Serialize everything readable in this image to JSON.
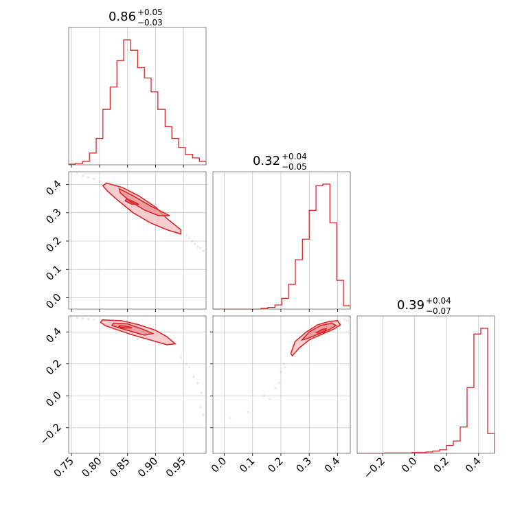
{
  "colors": {
    "accent": "#d62728",
    "fill_light": "#f4c6c8",
    "fill_mid": "#ea8e92",
    "frame": "#808080",
    "grid": "#c8c8c8"
  },
  "chart_data": {
    "type": "corner",
    "parameters": [
      {
        "title": {
          "median": "0.86",
          "plus": "+0.05",
          "minus": "−0.03"
        },
        "range": [
          0.745,
          0.99
        ]
      },
      {
        "title": {
          "median": "0.32",
          "plus": "+0.04",
          "minus": "−0.05"
        },
        "range": [
          -0.04,
          0.445
        ]
      },
      {
        "title": {
          "median": "0.39",
          "plus": "+0.04",
          "minus": "−0.07"
        },
        "range": [
          -0.36,
          0.5
        ]
      }
    ],
    "axis_ticks": [
      {
        "values": [
          0.75,
          0.8,
          0.85,
          0.9,
          0.95
        ],
        "labels": [
          "0.75",
          "0.80",
          "0.85",
          "0.90",
          "0.95"
        ]
      },
      {
        "values": [
          0.0,
          0.1,
          0.2,
          0.3,
          0.4
        ],
        "labels": [
          "0.0",
          "0.1",
          "0.2",
          "0.3",
          "0.4"
        ]
      },
      {
        "values": [
          -0.2,
          0.0,
          0.2,
          0.4
        ],
        "labels": [
          "−0.2",
          "0.0",
          "0.2",
          "0.4"
        ]
      }
    ],
    "histograms": [
      {
        "bin_edges": [
          0.745,
          0.757,
          0.77,
          0.782,
          0.794,
          0.806,
          0.819,
          0.831,
          0.843,
          0.855,
          0.868,
          0.88,
          0.892,
          0.904,
          0.917,
          0.929,
          0.941,
          0.953,
          0.966,
          0.978,
          0.99
        ],
        "counts": [
          1,
          2,
          5,
          17,
          38,
          80,
          112,
          150,
          180,
          165,
          140,
          125,
          105,
          80,
          55,
          38,
          25,
          15,
          10,
          5
        ]
      },
      {
        "bin_edges": [
          -0.04,
          -0.016,
          0.009,
          0.033,
          0.057,
          0.082,
          0.106,
          0.13,
          0.154,
          0.179,
          0.203,
          0.227,
          0.251,
          0.276,
          0.3,
          0.324,
          0.348,
          0.373,
          0.397,
          0.421,
          0.445
        ],
        "counts": [
          0,
          0,
          0,
          0,
          0,
          0,
          0,
          1,
          2,
          5,
          13,
          30,
          60,
          85,
          120,
          150,
          152,
          105,
          35,
          4
        ]
      },
      {
        "bin_edges": [
          -0.36,
          -0.317,
          -0.274,
          -0.231,
          -0.188,
          -0.145,
          -0.102,
          -0.059,
          -0.016,
          0.027,
          0.07,
          0.113,
          0.156,
          0.199,
          0.242,
          0.285,
          0.328,
          0.371,
          0.414,
          0.457,
          0.5
        ],
        "counts": [
          0,
          0,
          0,
          0,
          1,
          1,
          1,
          1,
          2,
          2,
          3,
          5,
          8,
          18,
          28,
          60,
          150,
          272,
          285,
          45
        ]
      }
    ],
    "pairs": [
      {
        "x_param": 0,
        "y_param": 1,
        "contour_outer": [
          [
            0.812,
            0.405
          ],
          [
            0.84,
            0.39
          ],
          [
            0.87,
            0.36
          ],
          [
            0.9,
            0.32
          ],
          [
            0.92,
            0.28
          ],
          [
            0.945,
            0.24
          ],
          [
            0.945,
            0.225
          ],
          [
            0.92,
            0.24
          ],
          [
            0.89,
            0.265
          ],
          [
            0.86,
            0.3
          ],
          [
            0.835,
            0.34
          ],
          [
            0.815,
            0.375
          ],
          [
            0.806,
            0.395
          ]
        ],
        "contour_inner": [
          [
            0.835,
            0.385
          ],
          [
            0.86,
            0.36
          ],
          [
            0.89,
            0.325
          ],
          [
            0.915,
            0.3
          ],
          [
            0.925,
            0.29
          ],
          [
            0.905,
            0.29
          ],
          [
            0.88,
            0.31
          ],
          [
            0.855,
            0.34
          ],
          [
            0.837,
            0.37
          ]
        ],
        "contour_core": [
          [
            0.848,
            0.35
          ],
          [
            0.862,
            0.338
          ],
          [
            0.87,
            0.33
          ],
          [
            0.858,
            0.33
          ],
          [
            0.846,
            0.342
          ]
        ],
        "scatter": [
          [
            0.76,
            0.44
          ],
          [
            0.77,
            0.43
          ],
          [
            0.78,
            0.425
          ],
          [
            0.79,
            0.42
          ],
          [
            0.8,
            0.41
          ],
          [
            0.955,
            0.22
          ],
          [
            0.96,
            0.21
          ],
          [
            0.965,
            0.2
          ],
          [
            0.97,
            0.19
          ],
          [
            0.975,
            0.18
          ],
          [
            0.98,
            0.175
          ],
          [
            0.985,
            0.165
          ]
        ]
      },
      {
        "x_param": 0,
        "y_param": 2,
        "contour_outer": [
          [
            0.805,
            0.475
          ],
          [
            0.84,
            0.47
          ],
          [
            0.87,
            0.445
          ],
          [
            0.9,
            0.41
          ],
          [
            0.92,
            0.37
          ],
          [
            0.935,
            0.325
          ],
          [
            0.92,
            0.32
          ],
          [
            0.895,
            0.345
          ],
          [
            0.86,
            0.38
          ],
          [
            0.83,
            0.415
          ],
          [
            0.81,
            0.44
          ],
          [
            0.802,
            0.46
          ]
        ],
        "contour_inner": [
          [
            0.825,
            0.455
          ],
          [
            0.85,
            0.45
          ],
          [
            0.875,
            0.42
          ],
          [
            0.895,
            0.39
          ],
          [
            0.88,
            0.38
          ],
          [
            0.86,
            0.4
          ],
          [
            0.835,
            0.425
          ],
          [
            0.822,
            0.44
          ]
        ],
        "contour_core": [
          [
            0.836,
            0.44
          ],
          [
            0.85,
            0.435
          ],
          [
            0.858,
            0.425
          ],
          [
            0.845,
            0.424
          ],
          [
            0.834,
            0.432
          ]
        ],
        "scatter": [
          [
            0.76,
            0.49
          ],
          [
            0.77,
            0.485
          ],
          [
            0.78,
            0.48
          ],
          [
            0.79,
            0.478
          ],
          [
            0.945,
            0.24
          ],
          [
            0.955,
            0.2
          ],
          [
            0.96,
            0.18
          ],
          [
            0.968,
            0.12
          ],
          [
            0.975,
            0.08
          ],
          [
            0.982,
            0.02
          ],
          [
            0.98,
            -0.07
          ],
          [
            0.985,
            -0.12
          ]
        ]
      },
      {
        "x_param": 1,
        "y_param": 2,
        "contour_outer": [
          [
            0.235,
            0.265
          ],
          [
            0.25,
            0.34
          ],
          [
            0.29,
            0.4
          ],
          [
            0.33,
            0.445
          ],
          [
            0.37,
            0.465
          ],
          [
            0.4,
            0.47
          ],
          [
            0.41,
            0.445
          ],
          [
            0.39,
            0.42
          ],
          [
            0.35,
            0.39
          ],
          [
            0.3,
            0.35
          ],
          [
            0.265,
            0.3
          ],
          [
            0.24,
            0.25
          ]
        ],
        "contour_inner": [
          [
            0.275,
            0.35
          ],
          [
            0.3,
            0.4
          ],
          [
            0.34,
            0.44
          ],
          [
            0.38,
            0.455
          ],
          [
            0.395,
            0.44
          ],
          [
            0.37,
            0.415
          ],
          [
            0.33,
            0.385
          ],
          [
            0.295,
            0.36
          ]
        ],
        "contour_core": [
          [
            0.325,
            0.395
          ],
          [
            0.345,
            0.415
          ],
          [
            0.36,
            0.42
          ],
          [
            0.355,
            0.4
          ],
          [
            0.335,
            0.39
          ]
        ],
        "scatter": [
          [
            0.02,
            -0.14
          ],
          [
            0.085,
            -0.1
          ],
          [
            0.14,
            0.0
          ],
          [
            0.16,
            -0.02
          ],
          [
            0.18,
            0.05
          ],
          [
            0.195,
            0.08
          ],
          [
            0.2,
            0.15
          ],
          [
            0.21,
            0.2
          ],
          [
            0.215,
            0.18
          ],
          [
            0.425,
            0.48
          ],
          [
            0.435,
            0.47
          ],
          [
            0.44,
            0.495
          ]
        ]
      }
    ]
  }
}
